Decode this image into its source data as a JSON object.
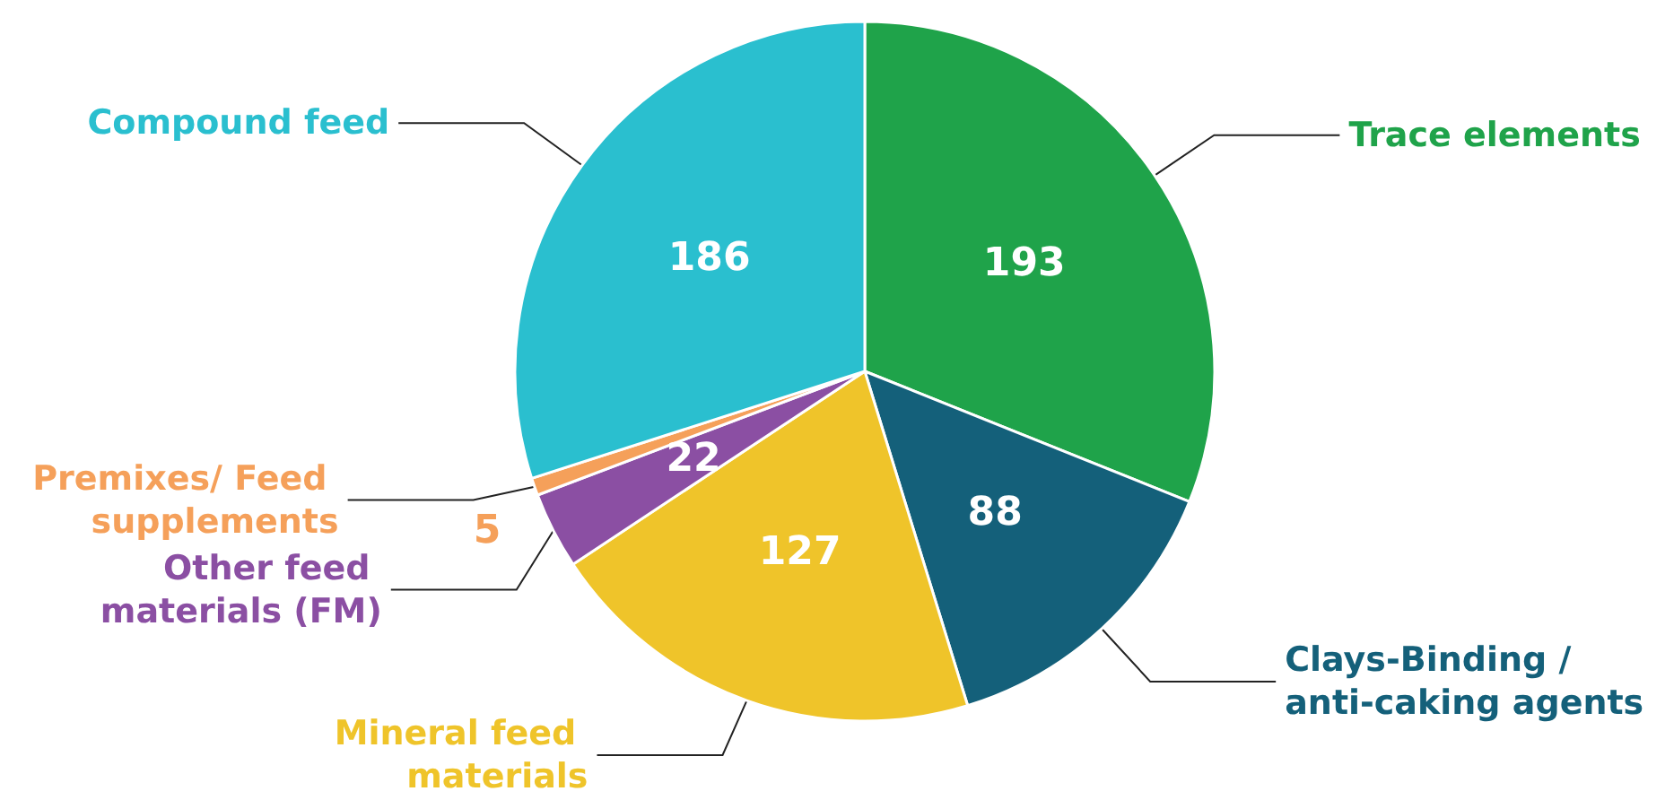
{
  "chart_data": {
    "type": "pie",
    "categories": [
      "Trace elements",
      "Clays-Binding /anti-caking agents",
      "Mineral feed materials",
      "Other feed materials (FM)",
      "Premixes/ Feed supplements",
      "Compound feed"
    ],
    "values": [
      193,
      88,
      127,
      22,
      5,
      186
    ],
    "colors": [
      "#1fa34a",
      "#14607a",
      "#efc42a",
      "#8b4fa3",
      "#f5a05a",
      "#2abfcf"
    ],
    "data_labels": true,
    "legend": false
  }
}
